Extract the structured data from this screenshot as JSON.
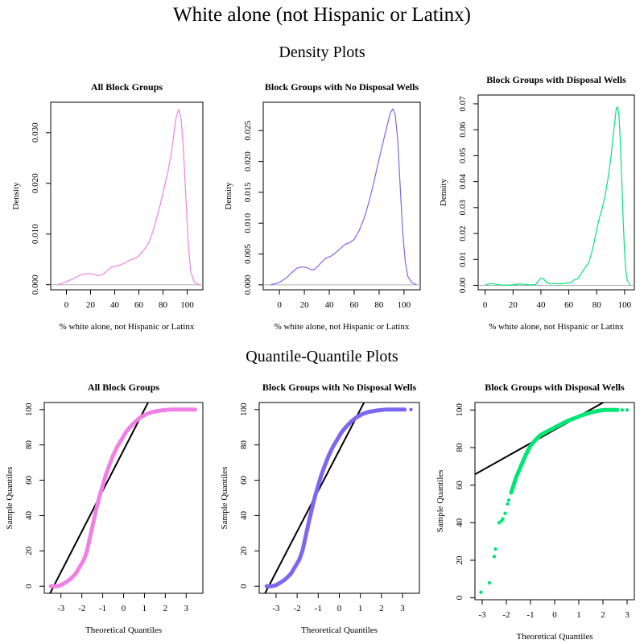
{
  "title": "White alone (not Hispanic or Latinx)",
  "section_titles": [
    "Density Plots",
    "Quantile-Quantile Plots"
  ],
  "colors": {
    "all": "#f080e6",
    "no_wells": "#7b68ee",
    "with_wells": "#00e676",
    "axis": "#000000",
    "reference_line": "#000000",
    "baseline": "#b0b0b0"
  },
  "chart_data": [
    {
      "type": "line",
      "title": "All Block Groups",
      "xlabel": "% white alone, not Hispanic or Latinx",
      "ylabel": "Density",
      "xlim": [
        -13,
        113
      ],
      "ylim": [
        -0.001,
        0.036
      ],
      "xticks": [
        0,
        20,
        40,
        60,
        80,
        100
      ],
      "yticks": [
        0.0,
        0.01,
        0.02,
        0.03
      ],
      "ytick_labels": [
        "0.000",
        "0.010",
        "0.020",
        "0.030"
      ],
      "color": "#f080e6",
      "points": [
        [
          -7,
          0
        ],
        [
          0,
          0.0006
        ],
        [
          6,
          0.0012
        ],
        [
          10,
          0.0017
        ],
        [
          14,
          0.0021
        ],
        [
          18,
          0.0022
        ],
        [
          22,
          0.0021
        ],
        [
          26,
          0.0018
        ],
        [
          29,
          0.0019
        ],
        [
          33,
          0.0026
        ],
        [
          37,
          0.0034
        ],
        [
          41,
          0.0037
        ],
        [
          45,
          0.0039
        ],
        [
          49,
          0.0044
        ],
        [
          53,
          0.0049
        ],
        [
          57,
          0.0052
        ],
        [
          60,
          0.0057
        ],
        [
          64,
          0.0068
        ],
        [
          68,
          0.0082
        ],
        [
          72,
          0.0108
        ],
        [
          76,
          0.0142
        ],
        [
          80,
          0.0181
        ],
        [
          84,
          0.0222
        ],
        [
          87,
          0.0262
        ],
        [
          89,
          0.0298
        ],
        [
          91,
          0.0332
        ],
        [
          93,
          0.0345
        ],
        [
          95,
          0.0328
        ],
        [
          97,
          0.0262
        ],
        [
          99,
          0.0168
        ],
        [
          101,
          0.0078
        ],
        [
          103,
          0.0025
        ],
        [
          106,
          0.0005
        ],
        [
          110,
          0
        ]
      ]
    },
    {
      "type": "line",
      "title": "Block Groups with No Disposal Wells",
      "xlabel": "% white alone, not Hispanic or Latinx",
      "ylabel": "Density",
      "xlim": [
        -13,
        113
      ],
      "ylim": [
        -0.0008,
        0.0296
      ],
      "xticks": [
        0,
        20,
        40,
        60,
        80,
        100
      ],
      "yticks": [
        0.0,
        0.005,
        0.01,
        0.015,
        0.02,
        0.025
      ],
      "ytick_labels": [
        "0.000",
        "0.005",
        "0.010",
        "0.015",
        "0.020",
        "0.025"
      ],
      "color": "#7b68ee",
      "points": [
        [
          -7,
          0
        ],
        [
          0,
          0.0004
        ],
        [
          6,
          0.0012
        ],
        [
          10,
          0.002
        ],
        [
          14,
          0.0027
        ],
        [
          18,
          0.0029
        ],
        [
          22,
          0.0028
        ],
        [
          26,
          0.0024
        ],
        [
          29,
          0.0026
        ],
        [
          33,
          0.0035
        ],
        [
          37,
          0.0043
        ],
        [
          41,
          0.0046
        ],
        [
          45,
          0.0052
        ],
        [
          49,
          0.0059
        ],
        [
          53,
          0.0066
        ],
        [
          57,
          0.0069
        ],
        [
          60,
          0.0074
        ],
        [
          64,
          0.0088
        ],
        [
          68,
          0.0108
        ],
        [
          72,
          0.0135
        ],
        [
          76,
          0.0168
        ],
        [
          80,
          0.0204
        ],
        [
          84,
          0.0238
        ],
        [
          87,
          0.0263
        ],
        [
          89,
          0.0279
        ],
        [
          91,
          0.0285
        ],
        [
          93,
          0.0276
        ],
        [
          95,
          0.0234
        ],
        [
          97,
          0.0158
        ],
        [
          99,
          0.0085
        ],
        [
          101,
          0.0038
        ],
        [
          103,
          0.0014
        ],
        [
          106,
          0.0004
        ],
        [
          110,
          0
        ]
      ]
    },
    {
      "type": "line",
      "title": "Block Groups with Disposal Wells",
      "xlabel": "% white alone, not Hispanic or Latinx",
      "ylabel": "Density",
      "xlim": [
        -5,
        107
      ],
      "ylim": [
        -0.0017,
        0.0734
      ],
      "xticks": [
        0,
        20,
        40,
        60,
        80,
        100
      ],
      "yticks": [
        0.0,
        0.01,
        0.02,
        0.03,
        0.04,
        0.05,
        0.06,
        0.07
      ],
      "ytick_labels": [
        "0.00",
        "0.01",
        "0.02",
        "0.03",
        "0.04",
        "0.05",
        "0.06",
        "0.07"
      ],
      "color": "#00e676",
      "points": [
        [
          0,
          0.0002
        ],
        [
          4,
          0.0007
        ],
        [
          8,
          0.0004
        ],
        [
          12,
          0.0001
        ],
        [
          16,
          0.0001
        ],
        [
          20,
          0.0002
        ],
        [
          24,
          0.0005
        ],
        [
          28,
          0.0004
        ],
        [
          32,
          0.0002
        ],
        [
          36,
          0.0003
        ],
        [
          38,
          0.0015
        ],
        [
          40,
          0.0028
        ],
        [
          42,
          0.0024
        ],
        [
          44,
          0.0012
        ],
        [
          46,
          0.0007
        ],
        [
          50,
          0.0007
        ],
        [
          54,
          0.0006
        ],
        [
          58,
          0.0009
        ],
        [
          60,
          0.0008
        ],
        [
          62,
          0.0013
        ],
        [
          64,
          0.0022
        ],
        [
          66,
          0.0023
        ],
        [
          68,
          0.0038
        ],
        [
          70,
          0.0055
        ],
        [
          72,
          0.0071
        ],
        [
          74,
          0.0084
        ],
        [
          76,
          0.0118
        ],
        [
          78,
          0.0162
        ],
        [
          80,
          0.0215
        ],
        [
          82,
          0.0262
        ],
        [
          84,
          0.0298
        ],
        [
          86,
          0.0345
        ],
        [
          88,
          0.0408
        ],
        [
          90,
          0.0485
        ],
        [
          92,
          0.0585
        ],
        [
          94,
          0.0682
        ],
        [
          95,
          0.0688
        ],
        [
          96,
          0.0655
        ],
        [
          97,
          0.0545
        ],
        [
          98,
          0.0405
        ],
        [
          99,
          0.0255
        ],
        [
          100,
          0.0125
        ],
        [
          101,
          0.0052
        ],
        [
          102,
          0.0018
        ],
        [
          104,
          0.0002
        ]
      ]
    },
    {
      "type": "scatter",
      "title": "All Block Groups",
      "xlabel": "Theoretical Quantiles",
      "ylabel": "Sample Quantiles",
      "xlim": [
        -3.8,
        3.8
      ],
      "ylim": [
        -4,
        104
      ],
      "xticks": [
        -3,
        -2,
        -1,
        0,
        1,
        2,
        3
      ],
      "yticks": [
        0,
        20,
        40,
        60,
        80,
        100
      ],
      "color": "#f080e6",
      "reference_line": {
        "intercept": 77,
        "slope": 23
      },
      "curve": [
        [
          -3.48,
          0
        ],
        [
          -3.2,
          0
        ],
        [
          -3.0,
          0.6
        ],
        [
          -2.8,
          2
        ],
        [
          -2.55,
          4
        ],
        [
          -2.3,
          7
        ],
        [
          -2.1,
          11
        ],
        [
          -1.9,
          15
        ],
        [
          -1.75,
          20
        ],
        [
          -1.6,
          28
        ],
        [
          -1.45,
          36
        ],
        [
          -1.3,
          44
        ],
        [
          -1.15,
          51
        ],
        [
          -1.0,
          57
        ],
        [
          -0.85,
          63
        ],
        [
          -0.7,
          68
        ],
        [
          -0.5,
          74
        ],
        [
          -0.3,
          79
        ],
        [
          -0.1,
          83
        ],
        [
          0.1,
          87
        ],
        [
          0.3,
          90
        ],
        [
          0.55,
          93
        ],
        [
          0.8,
          95.5
        ],
        [
          1.1,
          97.5
        ],
        [
          1.4,
          98.7
        ],
        [
          1.8,
          99.5
        ],
        [
          2.2,
          100
        ],
        [
          3.0,
          100
        ],
        [
          3.4,
          100
        ]
      ],
      "outliers": [
        [
          -3.5,
          0
        ],
        [
          3.15,
          100
        ],
        [
          3.45,
          100
        ]
      ]
    },
    {
      "type": "scatter",
      "title": "Block Groups with No Disposal Wells",
      "xlabel": "Theoretical Quantiles",
      "ylabel": "Sample Quantiles",
      "xlim": [
        -3.8,
        3.8
      ],
      "ylim": [
        -4,
        104
      ],
      "xticks": [
        -3,
        -2,
        -1,
        0,
        1,
        2,
        3
      ],
      "yticks": [
        0,
        20,
        40,
        60,
        80,
        100
      ],
      "color": "#7b68ee",
      "reference_line": {
        "intercept": 77,
        "slope": 23
      },
      "curve": [
        [
          -3.45,
          0
        ],
        [
          -3.2,
          0
        ],
        [
          -3.0,
          0.6
        ],
        [
          -2.8,
          2
        ],
        [
          -2.55,
          4
        ],
        [
          -2.3,
          7
        ],
        [
          -2.1,
          11
        ],
        [
          -1.9,
          15
        ],
        [
          -1.75,
          20
        ],
        [
          -1.6,
          28
        ],
        [
          -1.45,
          36
        ],
        [
          -1.3,
          44
        ],
        [
          -1.15,
          51
        ],
        [
          -1.0,
          57
        ],
        [
          -0.85,
          63
        ],
        [
          -0.7,
          68
        ],
        [
          -0.5,
          74
        ],
        [
          -0.3,
          79
        ],
        [
          -0.1,
          83
        ],
        [
          0.1,
          87
        ],
        [
          0.3,
          90
        ],
        [
          0.55,
          93
        ],
        [
          0.8,
          95.5
        ],
        [
          1.1,
          97.5
        ],
        [
          1.4,
          98.7
        ],
        [
          1.8,
          99.5
        ],
        [
          2.2,
          100
        ],
        [
          3.0,
          100
        ],
        [
          3.1,
          100
        ]
      ],
      "outliers": [
        [
          -3.45,
          0
        ],
        [
          3.1,
          100
        ],
        [
          3.4,
          100
        ]
      ]
    },
    {
      "type": "scatter",
      "title": "Block Groups with Disposal Wells",
      "xlabel": "Theoretical Quantiles",
      "ylabel": "Sample Quantiles",
      "xlim": [
        -3.3,
        3.3
      ],
      "ylim": [
        -1,
        104
      ],
      "xticks": [
        -3,
        -2,
        -1,
        0,
        1,
        2,
        3
      ],
      "yticks": [
        0,
        20,
        40,
        60,
        80,
        100
      ],
      "color": "#00e676",
      "reference_line": {
        "intercept": 89.5,
        "slope": 7.2
      },
      "curve": [
        [
          -1.8,
          56
        ],
        [
          -1.6,
          64
        ],
        [
          -1.4,
          70
        ],
        [
          -1.2,
          76
        ],
        [
          -1.0,
          81
        ],
        [
          -0.8,
          84
        ],
        [
          -0.6,
          86.5
        ],
        [
          -0.4,
          88
        ],
        [
          -0.1,
          90
        ],
        [
          0.2,
          92
        ],
        [
          0.5,
          94
        ],
        [
          0.8,
          95.5
        ],
        [
          1.1,
          97
        ],
        [
          1.4,
          98.3
        ],
        [
          1.7,
          99.3
        ],
        [
          2.0,
          100
        ],
        [
          2.6,
          100
        ]
      ],
      "outliers": [
        [
          -3.05,
          3
        ],
        [
          -2.7,
          8
        ],
        [
          -2.5,
          22
        ],
        [
          -2.45,
          26
        ],
        [
          -2.3,
          40
        ],
        [
          -2.2,
          41
        ],
        [
          -2.15,
          42
        ],
        [
          -2.05,
          45
        ],
        [
          -1.95,
          50
        ],
        [
          -1.9,
          52
        ],
        [
          2.8,
          100
        ],
        [
          3.0,
          100
        ]
      ]
    }
  ]
}
